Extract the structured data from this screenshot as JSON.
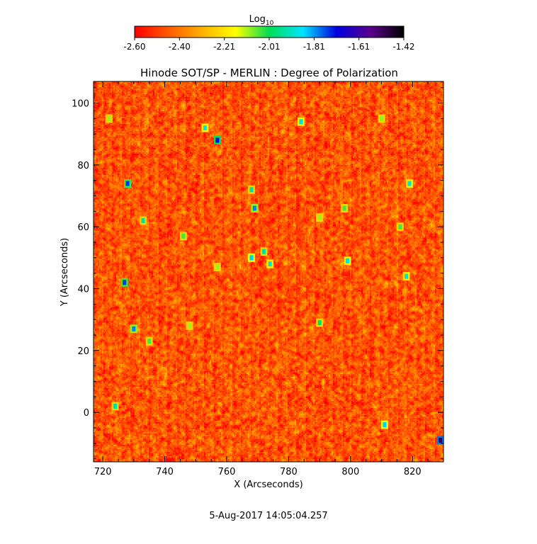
{
  "chart_data": {
    "type": "heatmap",
    "title": "Hinode SOT/SP - MERLIN : Degree of Polarization",
    "xlabel": "X (Arcseconds)",
    "ylabel": "Y (Arcseconds)",
    "xlim": [
      717,
      830
    ],
    "ylim": [
      -16,
      107
    ],
    "xticks": [
      720,
      740,
      760,
      780,
      800,
      820
    ],
    "yticks": [
      0,
      20,
      40,
      60,
      80,
      100
    ],
    "colorbar": {
      "label_base": "Log",
      "label_sub": "10",
      "range": [
        -2.6,
        -1.42
      ],
      "ticks": [
        "-2.60",
        "-2.40",
        "-2.21",
        "-2.01",
        "-1.81",
        "-1.61",
        "-1.42"
      ],
      "colormap": [
        "#ff0000",
        "#ff5a00",
        "#ffb000",
        "#ffff00",
        "#00dd55",
        "#00e5ff",
        "#0000e0",
        "#5a008c",
        "#000000"
      ]
    },
    "background_level": -2.46,
    "features": [
      {
        "x": 728,
        "y": 74,
        "value": -1.75
      },
      {
        "x": 753,
        "y": 92,
        "value": -1.88
      },
      {
        "x": 757,
        "y": 88,
        "value": -1.72
      },
      {
        "x": 768,
        "y": 72,
        "value": -1.95
      },
      {
        "x": 769,
        "y": 66,
        "value": -1.8
      },
      {
        "x": 768,
        "y": 50,
        "value": -1.85
      },
      {
        "x": 772,
        "y": 52,
        "value": -1.95
      },
      {
        "x": 774,
        "y": 48,
        "value": -1.9
      },
      {
        "x": 727,
        "y": 42,
        "value": -1.75
      },
      {
        "x": 730,
        "y": 27,
        "value": -1.8
      },
      {
        "x": 724,
        "y": 2,
        "value": -1.95
      },
      {
        "x": 784,
        "y": 94,
        "value": -1.9
      },
      {
        "x": 799,
        "y": 49,
        "value": -1.9
      },
      {
        "x": 790,
        "y": 29,
        "value": -2.0
      },
      {
        "x": 733,
        "y": 62,
        "value": -1.95
      },
      {
        "x": 811,
        "y": -4,
        "value": -1.85
      },
      {
        "x": 818,
        "y": 44,
        "value": -1.9
      },
      {
        "x": 829,
        "y": -9,
        "value": -1.5
      },
      {
        "x": 819,
        "y": 74,
        "value": -1.9
      },
      {
        "x": 746,
        "y": 57,
        "value": -2.05
      },
      {
        "x": 735,
        "y": 23,
        "value": -2.05
      },
      {
        "x": 798,
        "y": 66,
        "value": -2.05
      },
      {
        "x": 757,
        "y": 47,
        "value": -2.1
      },
      {
        "x": 816,
        "y": 60,
        "value": -2.05
      },
      {
        "x": 810,
        "y": 95,
        "value": -2.1
      },
      {
        "x": 748,
        "y": 28,
        "value": -2.1
      },
      {
        "x": 790,
        "y": 63,
        "value": -2.1
      },
      {
        "x": 722,
        "y": 95,
        "value": -2.1
      }
    ]
  },
  "footer": {
    "timestamp": "5-Aug-2017 14:05:04.257"
  }
}
